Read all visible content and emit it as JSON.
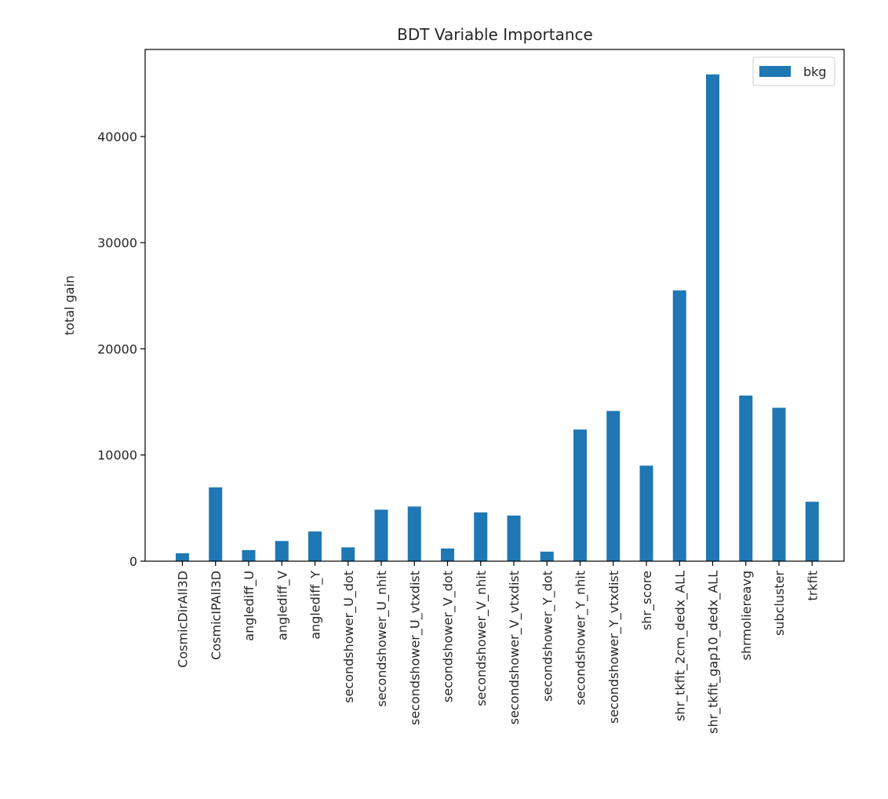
{
  "chart_data": {
    "type": "bar",
    "title": "BDT Variable Importance",
    "xlabel": "",
    "ylabel": "total gain",
    "ylim": [
      0,
      48200
    ],
    "yticks": [
      0,
      10000,
      20000,
      30000,
      40000
    ],
    "grid": false,
    "legend_position": "top-right",
    "categories": [
      "CosmicDirAll3D",
      "CosmicIPAll3D",
      "anglediff_U",
      "anglediff_V",
      "anglediff_Y",
      "secondshower_U_dot",
      "secondshower_U_nhit",
      "secondshower_U_vtxdist",
      "secondshower_V_dot",
      "secondshower_V_nhit",
      "secondshower_V_vtxdist",
      "secondshower_Y_dot",
      "secondshower_Y_nhit",
      "secondshower_Y_vtxdist",
      "shr_score",
      "shr_tkfit_2cm_dedx_ALL",
      "shr_tkfit_gap10_dedx_ALL",
      "shrmoliereavg",
      "subcluster",
      "trkfit"
    ],
    "series": [
      {
        "name": "bkg",
        "color": "#1f77b4",
        "values": [
          750,
          6950,
          1050,
          1900,
          2800,
          1300,
          4850,
          5150,
          1200,
          4600,
          4300,
          900,
          12400,
          14150,
          9000,
          25500,
          45850,
          15600,
          14450,
          5600
        ]
      }
    ]
  }
}
